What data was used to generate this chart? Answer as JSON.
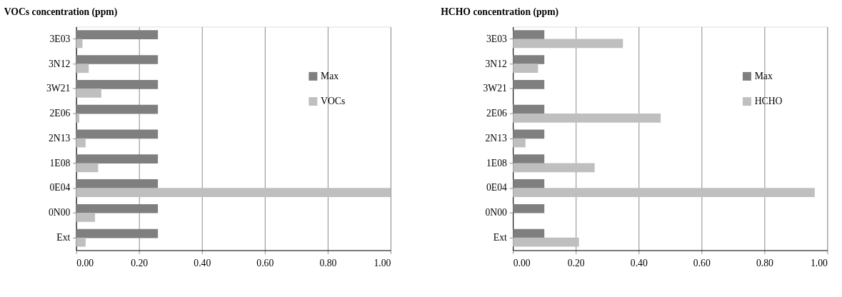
{
  "chart_data": [
    {
      "type": "bar",
      "orientation": "horizontal",
      "title": "VOCs concentration (ppm)",
      "categories": [
        "3E03",
        "3N12",
        "3W21",
        "2E06",
        "2N13",
        "1E08",
        "0E04",
        "0N00",
        "Ext"
      ],
      "series": [
        {
          "name": "Max",
          "color": "#7f7f7f",
          "values": [
            0.26,
            0.26,
            0.26,
            0.26,
            0.26,
            0.26,
            0.26,
            0.26,
            0.26
          ]
        },
        {
          "name": "VOCs",
          "color": "#bfbfbf",
          "values": [
            0.02,
            0.04,
            0.08,
            0.01,
            0.03,
            0.07,
            1.0,
            0.06,
            0.03
          ]
        }
      ],
      "xlim": [
        0,
        1
      ],
      "xticks": [
        {
          "value": 0,
          "label": "0.00"
        },
        {
          "value": 0.2,
          "label": "0.20"
        },
        {
          "value": 0.4,
          "label": "0.40"
        },
        {
          "value": 0.6,
          "label": "0.60"
        },
        {
          "value": 0.8,
          "label": "0.80"
        },
        {
          "value": 1,
          "label": "1.00"
        }
      ],
      "grid": "x",
      "legend": "top right"
    },
    {
      "type": "bar",
      "orientation": "horizontal",
      "title": "HCHO concentration (ppm)",
      "categories": [
        "3E03",
        "3N12",
        "3W21",
        "2E06",
        "2N13",
        "1E08",
        "0E04",
        "0N00",
        "Ext"
      ],
      "series": [
        {
          "name": "Max",
          "color": "#7f7f7f",
          "values": [
            0.1,
            0.1,
            0.1,
            0.1,
            0.1,
            0.1,
            0.1,
            0.1,
            0.1
          ]
        },
        {
          "name": "HCHO",
          "color": "#bfbfbf",
          "values": [
            0.35,
            0.08,
            0.0,
            0.47,
            0.04,
            0.26,
            0.96,
            0.0,
            0.21
          ]
        }
      ],
      "xlim": [
        0,
        1
      ],
      "xticks": [
        {
          "value": 0,
          "label": "0.00"
        },
        {
          "value": 0.2,
          "label": "0.20"
        },
        {
          "value": 0.4,
          "label": "0.40"
        },
        {
          "value": 0.6,
          "label": "0.60"
        },
        {
          "value": 0.8,
          "label": "0.80"
        },
        {
          "value": 1,
          "label": "1.00"
        }
      ],
      "grid": "x",
      "legend": "top right"
    }
  ]
}
